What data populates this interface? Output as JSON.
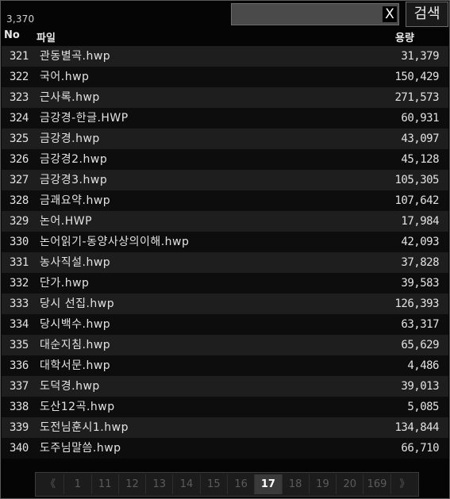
{
  "header": {
    "total_count": "3,370",
    "search": {
      "value": "",
      "clear_label": "X",
      "button_label": "검색"
    },
    "columns": {
      "no": "No",
      "file": "파일",
      "size": "용량"
    }
  },
  "rows": [
    {
      "no": "321",
      "name": "관동별곡.hwp",
      "size": "31,379"
    },
    {
      "no": "322",
      "name": "국어.hwp",
      "size": "150,429"
    },
    {
      "no": "323",
      "name": "근사록.hwp",
      "size": "271,573"
    },
    {
      "no": "324",
      "name": "금강경-한글.HWP",
      "size": "60,931"
    },
    {
      "no": "325",
      "name": "금강경.hwp",
      "size": "43,097"
    },
    {
      "no": "326",
      "name": "금강경2.hwp",
      "size": "45,128"
    },
    {
      "no": "327",
      "name": "금강경3.hwp",
      "size": "105,305"
    },
    {
      "no": "328",
      "name": "금괘요약.hwp",
      "size": "107,642"
    },
    {
      "no": "329",
      "name": "논어.HWP",
      "size": "17,984"
    },
    {
      "no": "330",
      "name": "논어읽기-동양사상의이해.hwp",
      "size": "42,093"
    },
    {
      "no": "331",
      "name": "농사직설.hwp",
      "size": "37,828"
    },
    {
      "no": "332",
      "name": "단가.hwp",
      "size": "39,583"
    },
    {
      "no": "333",
      "name": "당시 선집.hwp",
      "size": "126,393"
    },
    {
      "no": "334",
      "name": "당시백수.hwp",
      "size": "63,317"
    },
    {
      "no": "335",
      "name": "대순지침.hwp",
      "size": "65,629"
    },
    {
      "no": "336",
      "name": "대학서문.hwp",
      "size": "4,486"
    },
    {
      "no": "337",
      "name": "도덕경.hwp",
      "size": "39,013"
    },
    {
      "no": "338",
      "name": "도산12곡.hwp",
      "size": "5,085"
    },
    {
      "no": "339",
      "name": "도전님훈시1.hwp",
      "size": "134,844"
    },
    {
      "no": "340",
      "name": "도주님말씀.hwp",
      "size": "66,710"
    }
  ],
  "pagination": {
    "prev_label": "《",
    "next_label": "》",
    "pages": [
      "1",
      "11",
      "12",
      "13",
      "14",
      "15",
      "16",
      "17",
      "18",
      "19",
      "20",
      "169"
    ],
    "current": "17"
  }
}
